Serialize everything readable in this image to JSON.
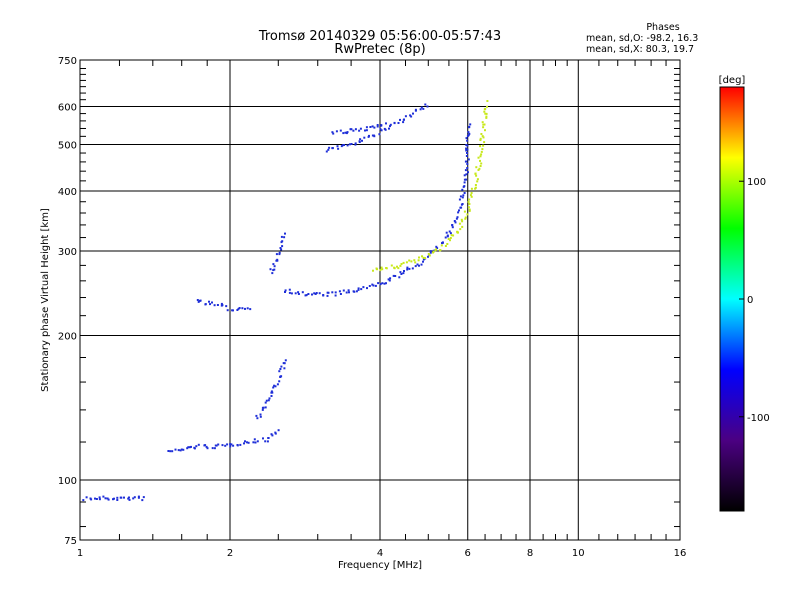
{
  "chart_data": {
    "type": "scatter",
    "title": "Tromsø 20140329 05:56:00-05:57:43",
    "subtitle": "RwPretec (8p)",
    "xlabel": "Frequency [MHz]",
    "ylabel": "Stationary phase Virtual Height [km]",
    "x_scale": "log",
    "y_scale": "log",
    "xlim": [
      1,
      16
    ],
    "ylim": [
      75,
      750
    ],
    "x_ticks": [
      "1",
      "2",
      "4",
      "6",
      "8",
      "10",
      "16"
    ],
    "x_tick_values": [
      1,
      2,
      4,
      6,
      8,
      10,
      16
    ],
    "y_ticks": [
      "75",
      "100",
      "200",
      "300",
      "400",
      "500",
      "600",
      "750"
    ],
    "y_tick_values": [
      75,
      100,
      200,
      300,
      400,
      500,
      600,
      750
    ],
    "grid": true,
    "phase_stats": {
      "title": "Phases",
      "line_o": "mean, sd,O: -98.2, 16.3",
      "line_x": "mean, sd,X:  80.3, 19.7"
    },
    "colorbar": {
      "label": "[deg]",
      "range": [
        -180,
        180
      ],
      "ticks": [
        "100",
        "0",
        "-100"
      ],
      "tick_values": [
        100,
        0,
        -100
      ],
      "stops": [
        "#000000",
        "#4b0082",
        "#0000ff",
        "#00ffff",
        "#00ff00",
        "#ffff00",
        "#ff0000"
      ]
    },
    "series": [
      {
        "mode": "O",
        "color": "#1f2fd8",
        "traces": [
          {
            "f": [
              1.02,
              1.35
            ],
            "h": [
              92,
              92
            ]
          },
          {
            "f": [
              1.5,
              1.7,
              1.9,
              2.1,
              2.35,
              2.5
            ],
            "h": [
              115,
              118,
              118,
              120,
              122,
              128
            ]
          },
          {
            "f": [
              2.25,
              2.4,
              2.5,
              2.6
            ],
            "h": [
              135,
              150,
              165,
              180
            ]
          },
          {
            "f": [
              1.7,
              1.9,
              2.0,
              2.2
            ],
            "h": [
              238,
              232,
              228,
              230
            ]
          },
          {
            "f": [
              2.55,
              2.8,
              3.2,
              3.6,
              4.0,
              4.4,
              4.8,
              5.2,
              5.5,
              5.8,
              5.95,
              6.0
            ],
            "h": [
              250,
              245,
              245,
              250,
              258,
              270,
              285,
              305,
              330,
              380,
              450,
              560
            ]
          },
          {
            "f": [
              2.4,
              2.5,
              2.55
            ],
            "h": [
              270,
              300,
              330
            ]
          },
          {
            "f": [
              3.1,
              3.4,
              3.8,
              4.2,
              4.6,
              5.0
            ],
            "h": [
              490,
              500,
              520,
              550,
              580,
              610
            ]
          },
          {
            "f": [
              3.2,
              3.7,
              4.1
            ],
            "h": [
              530,
              540,
              560
            ]
          }
        ]
      },
      {
        "mode": "X",
        "color": "#c8e81c",
        "traces": [
          {
            "f": [
              3.85,
              4.3,
              4.8,
              5.3,
              5.7,
              6.0,
              6.2,
              6.35,
              6.45,
              6.5
            ],
            "h": [
              275,
              280,
              290,
              305,
              330,
              370,
              420,
              480,
              560,
              620
            ]
          }
        ]
      }
    ]
  }
}
